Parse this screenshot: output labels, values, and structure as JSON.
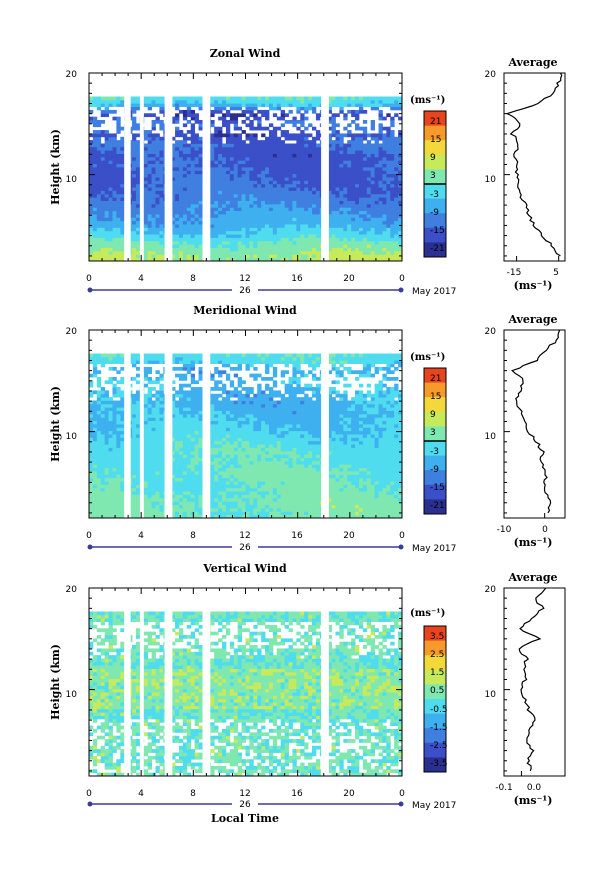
{
  "chart_data": [
    {
      "type": "heatmap",
      "title": "Zonal Wind",
      "ylabel": "Height (km)",
      "xlabel": "",
      "x_ticks": [
        "0",
        "4",
        "8",
        "12",
        "16",
        "20",
        "0"
      ],
      "y_ticks": [
        "10",
        "20"
      ],
      "xlim": [
        0,
        24
      ],
      "ylim": [
        1.5,
        20
      ],
      "date_day": "26",
      "date_label": "May 2017",
      "colorbar": {
        "unit": "(ms⁻¹)",
        "ticks": [
          "21",
          "15",
          "9",
          "3",
          "-3",
          "-9",
          "-15",
          "-21"
        ],
        "range": [
          -24,
          24
        ],
        "marker": 0
      },
      "data_gaps_hours": [
        [
          2.7,
          3.2
        ],
        [
          3.9,
          4.2
        ],
        [
          5.8,
          6.4
        ],
        [
          8.7,
          9.3
        ],
        [
          17.8,
          18.4
        ]
      ],
      "profile": {
        "title": "Average",
        "xlim": [
          -21,
          8
        ],
        "x_ticks": [
          [
            "-15",
            -15
          ],
          [
            "5",
            5
          ]
        ],
        "xlabel": "(ms⁻¹)",
        "heights": [
          2,
          3,
          4,
          5,
          6,
          7,
          8,
          9,
          10,
          11,
          12,
          13,
          14,
          15,
          16,
          17,
          18,
          19,
          20
        ],
        "values": [
          5,
          2,
          -3,
          -7,
          -9,
          -11,
          -13,
          -14,
          -15,
          -15,
          -16,
          -14,
          -17,
          -13,
          -19,
          -4,
          2,
          5,
          6
        ]
      }
    },
    {
      "type": "heatmap",
      "title": "Meridional Wind",
      "ylabel": "Height (km)",
      "xlabel": "",
      "x_ticks": [
        "0",
        "4",
        "8",
        "12",
        "16",
        "20",
        "0"
      ],
      "y_ticks": [
        "10",
        "20"
      ],
      "xlim": [
        0,
        24
      ],
      "ylim": [
        1.5,
        20
      ],
      "date_day": "26",
      "date_label": "May 2017",
      "colorbar": {
        "unit": "(ms⁻¹)",
        "ticks": [
          "21",
          "15",
          "9",
          "3",
          "-3",
          "-9",
          "-15",
          "-21"
        ],
        "range": [
          -24,
          24
        ],
        "marker": 0
      },
      "data_gaps_hours": [
        [
          2.7,
          3.2
        ],
        [
          3.9,
          4.2
        ],
        [
          5.8,
          6.4
        ],
        [
          8.7,
          9.3
        ],
        [
          17.8,
          18.4
        ]
      ],
      "profile": {
        "title": "Average",
        "xlim": [
          -10,
          5
        ],
        "x_ticks": [
          [
            "-10",
            -10
          ],
          [
            "0",
            0
          ]
        ],
        "xlabel": "(ms⁻¹)",
        "heights": [
          2,
          3,
          4,
          5,
          6,
          7,
          8,
          9,
          10,
          11,
          12,
          13,
          14,
          15,
          16,
          17,
          18,
          19,
          20
        ],
        "values": [
          1,
          1.5,
          0.5,
          0,
          0.5,
          -1,
          -0.5,
          -2,
          -4,
          -5,
          -6,
          -7,
          -6,
          -5,
          -8,
          -2,
          0,
          3,
          4
        ]
      }
    },
    {
      "type": "heatmap",
      "title": "Vertical Wind",
      "ylabel": "Height (km)",
      "xlabel": "Local Time",
      "x_ticks": [
        "0",
        "4",
        "8",
        "12",
        "16",
        "20",
        "0"
      ],
      "y_ticks": [
        "10",
        "20"
      ],
      "xlim": [
        0,
        24
      ],
      "ylim": [
        1.5,
        20
      ],
      "date_day": "26",
      "date_label": "May 2017",
      "colorbar": {
        "unit": "(ms⁻¹)",
        "ticks": [
          "3.5",
          "2.5",
          "1.5",
          "0.5",
          "-0.5",
          "-1.5",
          "-2.5",
          "-3.5"
        ],
        "range": [
          -4,
          4
        ],
        "marker": null
      },
      "data_gaps_hours": [
        [
          2.7,
          3.2
        ],
        [
          3.9,
          4.2
        ],
        [
          5.8,
          6.4
        ],
        [
          8.7,
          9.3
        ],
        [
          17.8,
          18.4
        ]
      ],
      "profile": {
        "title": "Average",
        "xlim": [
          -0.1,
          0.25
        ],
        "x_ticks": [
          [
            "-0.1",
            -0.1
          ],
          [
            "0.0",
            0.0
          ]
        ],
        "xlabel": "(ms⁻¹)",
        "heights": [
          2,
          3,
          4,
          5,
          6,
          7,
          8,
          9,
          10,
          11,
          12,
          13,
          14,
          15,
          16,
          17,
          18,
          19,
          20
        ],
        "values": [
          0.05,
          0.04,
          0.06,
          0.03,
          0.05,
          0.08,
          0.04,
          0.02,
          0.0,
          0.02,
          0.01,
          0.03,
          -0.02,
          0.1,
          -0.01,
          0.06,
          0.12,
          0.08,
          0.15
        ]
      }
    }
  ],
  "colors": {
    "scale": [
      "#2b2f8f",
      "#3a4fc8",
      "#3f7fe0",
      "#3fb0ef",
      "#4fdcef",
      "#7fe8b0",
      "#c6ea5a",
      "#f2d83a",
      "#f79a2a",
      "#e8441e"
    ],
    "frame": "#000000",
    "date_bar": "#3b3b9e",
    "missing": "#ffffff"
  }
}
